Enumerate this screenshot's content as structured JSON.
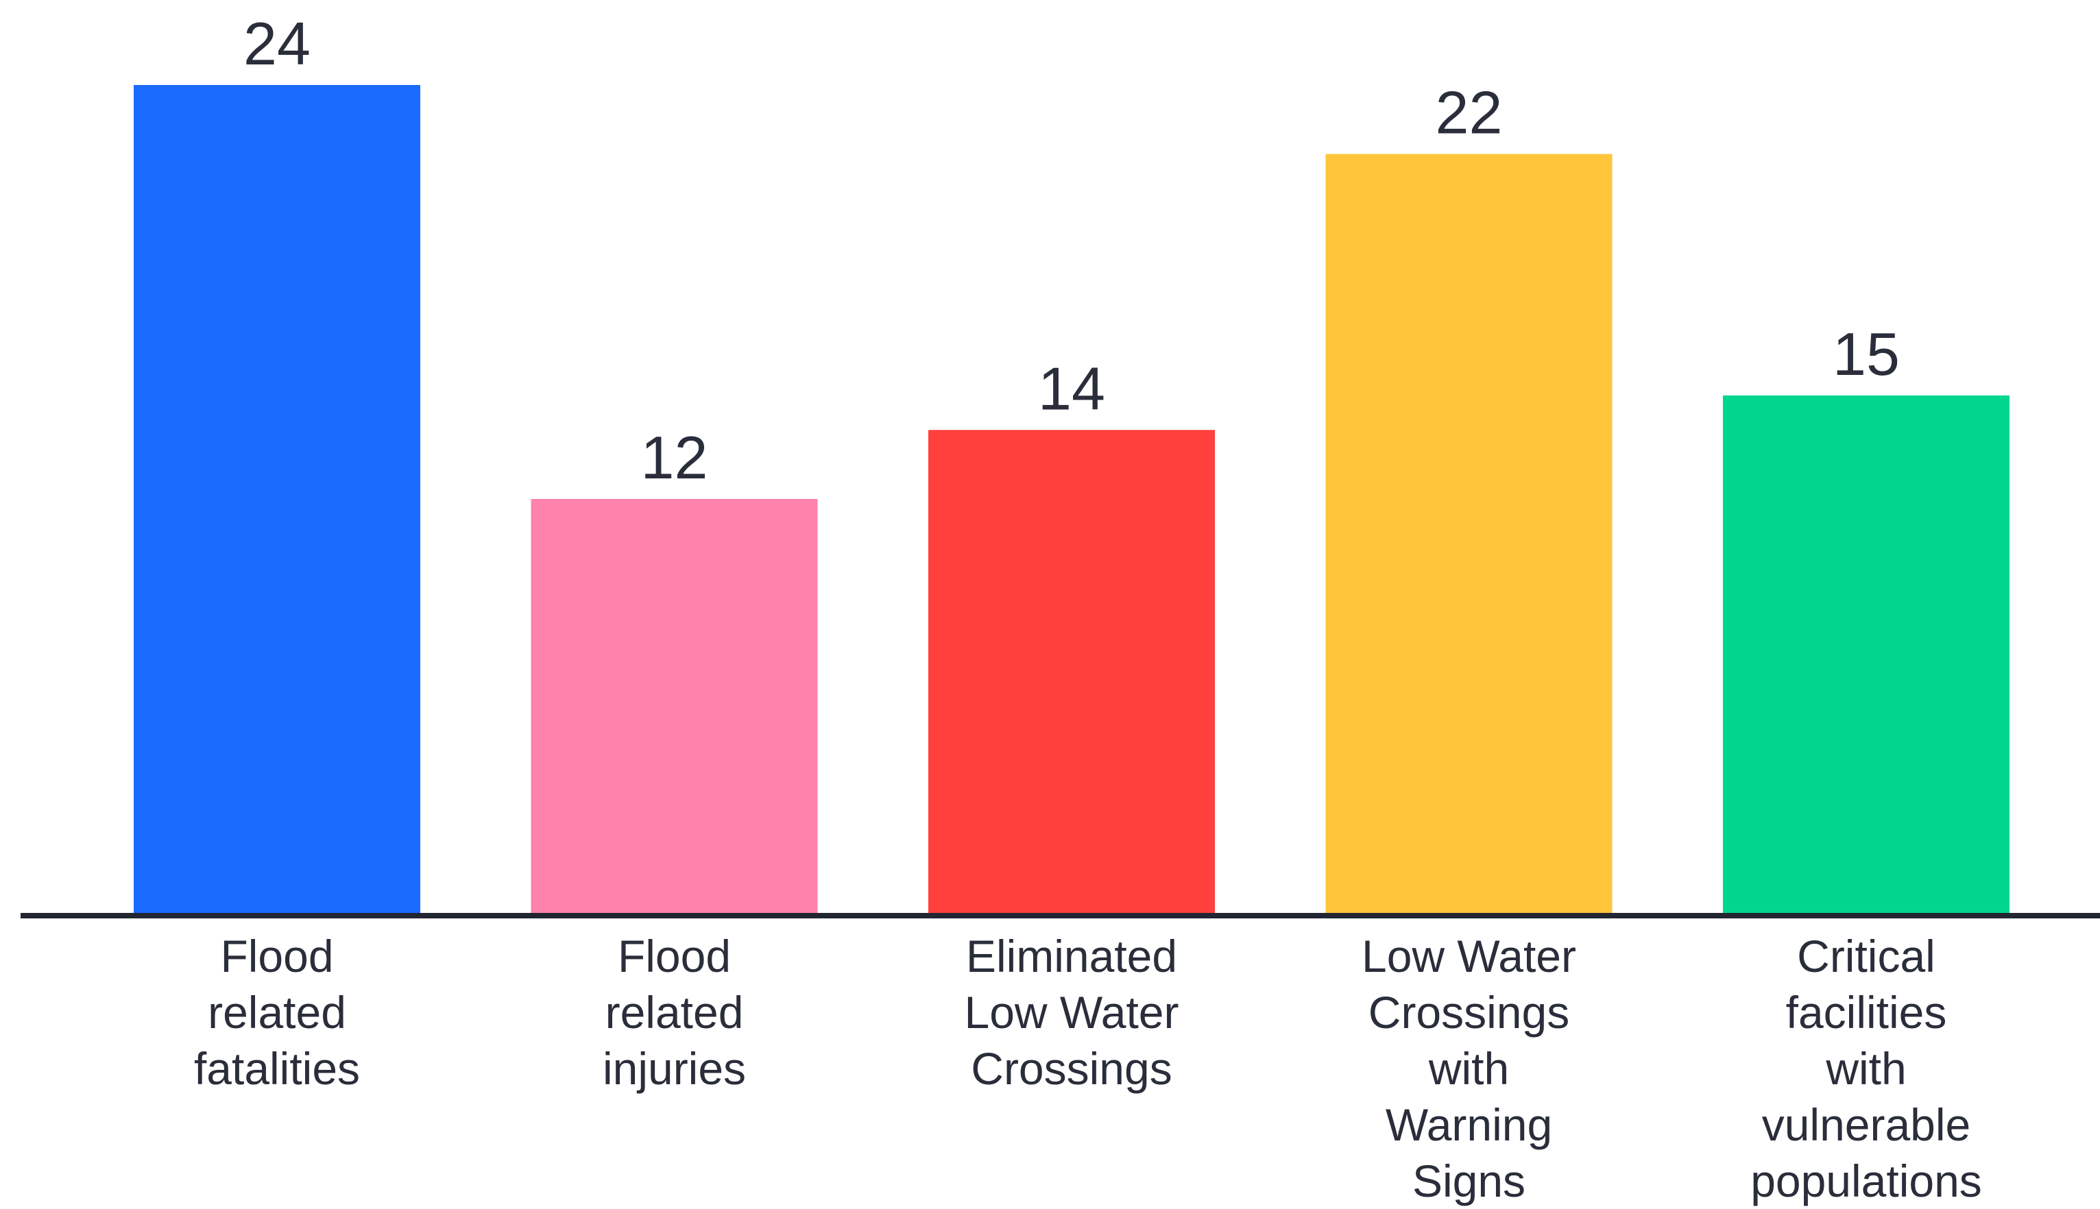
{
  "chart_data": {
    "type": "bar",
    "categories": [
      [
        "Flood",
        "related",
        "fatalities"
      ],
      [
        "Flood",
        "related",
        "injuries"
      ],
      [
        "Eliminated",
        "Low Water",
        "Crossings"
      ],
      [
        "Low Water",
        "Crossings",
        "with",
        "Warning",
        "Signs"
      ],
      [
        "Critical",
        "facilities",
        "with",
        "vulnerable",
        "populations"
      ]
    ],
    "values": [
      24,
      12,
      14,
      22,
      15
    ],
    "value_labels": [
      "24",
      "12",
      "14",
      "22",
      "15"
    ],
    "colors": [
      "#1c6bff",
      "#ff82ac",
      "#ff403d",
      "#ffc53a",
      "#00d68e"
    ],
    "ylim": [
      0,
      24
    ],
    "grid": false,
    "legend": "none",
    "title": "",
    "xlabel": "",
    "ylabel": ""
  }
}
